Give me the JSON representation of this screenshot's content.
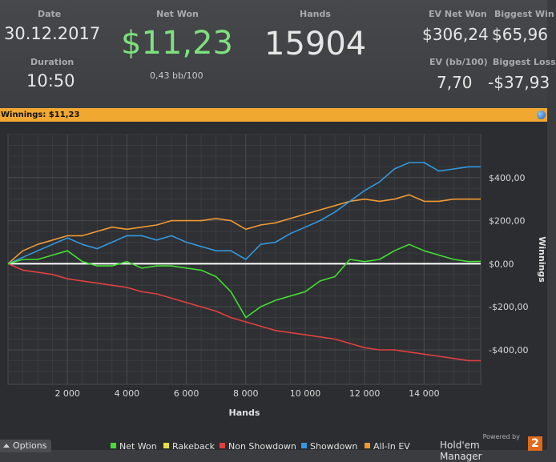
{
  "header": {
    "date_label": "Date",
    "date": "30.12.2017",
    "duration_label": "Duration",
    "duration": "10:50",
    "net_won_label": "Net Won",
    "net_won": "$11,23",
    "bb_per_100": "0,43 bb/100",
    "hands_label": "Hands",
    "hands": "15904",
    "ev_net_won_label": "EV Net Won",
    "ev_net_won": "$306,24",
    "ev_bb_label": "EV (bb/100)",
    "ev_bb": "7,70",
    "biggest_win_label": "Biggest Win",
    "biggest_win": "$65,96",
    "biggest_loss_label": "Biggest Loss",
    "biggest_loss": "-$37,93"
  },
  "banner": {
    "text": "Winnings: $11,23"
  },
  "options": {
    "label": "Options"
  },
  "brand": {
    "powered": "Powered by",
    "name": "Hold'em Manager",
    "version": "2"
  },
  "colors": {
    "net_won": "#44dd33",
    "rakeback": "#e8e040",
    "non_showdown": "#e04040",
    "showdown": "#3399dd",
    "all_in_ev": "#f09933",
    "net_won_value": "#7ee07e",
    "banner": "#f0a830"
  },
  "chart_data": {
    "type": "line",
    "xlabel": "Hands",
    "ylabel": "Winnings",
    "xlim": [
      0,
      15904
    ],
    "ylim": [
      -560,
      600
    ],
    "x_ticks": [
      2000,
      4000,
      6000,
      8000,
      10000,
      12000,
      14000
    ],
    "x_tick_labels": [
      "2 000",
      "4 000",
      "6 000",
      "8 000",
      "10 000",
      "12 000",
      "14 000"
    ],
    "y_ticks": [
      400,
      200,
      0,
      -200,
      -400
    ],
    "y_tick_labels": [
      "$400,00",
      "$200,00",
      "$0,00",
      "-$200,00",
      "-$400,00"
    ],
    "grid": true,
    "legend_position": "bottom",
    "x": [
      0,
      500,
      1000,
      1500,
      2000,
      2500,
      3000,
      3500,
      4000,
      4500,
      5000,
      5500,
      6000,
      6500,
      7000,
      7500,
      8000,
      8500,
      9000,
      9500,
      10000,
      10500,
      11000,
      11500,
      12000,
      12500,
      13000,
      13500,
      14000,
      14500,
      15000,
      15500,
      15904
    ],
    "series": [
      {
        "name": "Net Won",
        "color": "#44dd33",
        "values": [
          0,
          20,
          20,
          40,
          60,
          10,
          -10,
          -10,
          10,
          -20,
          -10,
          -10,
          -20,
          -30,
          -60,
          -130,
          -250,
          -200,
          -170,
          -150,
          -130,
          -80,
          -60,
          20,
          10,
          20,
          60,
          90,
          60,
          40,
          20,
          10,
          11
        ]
      },
      {
        "name": "Rakeback",
        "color": "#e8e040",
        "values": [
          0,
          0,
          0,
          0,
          0,
          0,
          0,
          0,
          0,
          0,
          0,
          0,
          0,
          0,
          0,
          0,
          0,
          0,
          0,
          0,
          0,
          0,
          0,
          0,
          0,
          0,
          0,
          0,
          0,
          0,
          0,
          0,
          0
        ]
      },
      {
        "name": "Non Showdown",
        "color": "#e04040",
        "values": [
          0,
          -30,
          -40,
          -50,
          -70,
          -80,
          -90,
          -100,
          -110,
          -130,
          -140,
          -160,
          -180,
          -200,
          -220,
          -250,
          -270,
          -290,
          -310,
          -320,
          -330,
          -340,
          -350,
          -370,
          -390,
          -400,
          -400,
          -410,
          -420,
          -430,
          -440,
          -450,
          -450
        ]
      },
      {
        "name": "Showdown",
        "color": "#3399dd",
        "values": [
          0,
          30,
          60,
          90,
          120,
          90,
          70,
          100,
          130,
          130,
          110,
          130,
          100,
          80,
          60,
          60,
          20,
          90,
          100,
          140,
          170,
          200,
          240,
          290,
          340,
          380,
          440,
          470,
          470,
          430,
          440,
          450,
          450
        ]
      },
      {
        "name": "All-In EV",
        "color": "#f09933",
        "values": [
          0,
          60,
          90,
          110,
          130,
          130,
          150,
          170,
          160,
          170,
          180,
          200,
          200,
          200,
          210,
          200,
          160,
          180,
          190,
          210,
          230,
          250,
          270,
          290,
          300,
          290,
          300,
          320,
          290,
          290,
          300,
          300,
          300
        ]
      }
    ]
  }
}
